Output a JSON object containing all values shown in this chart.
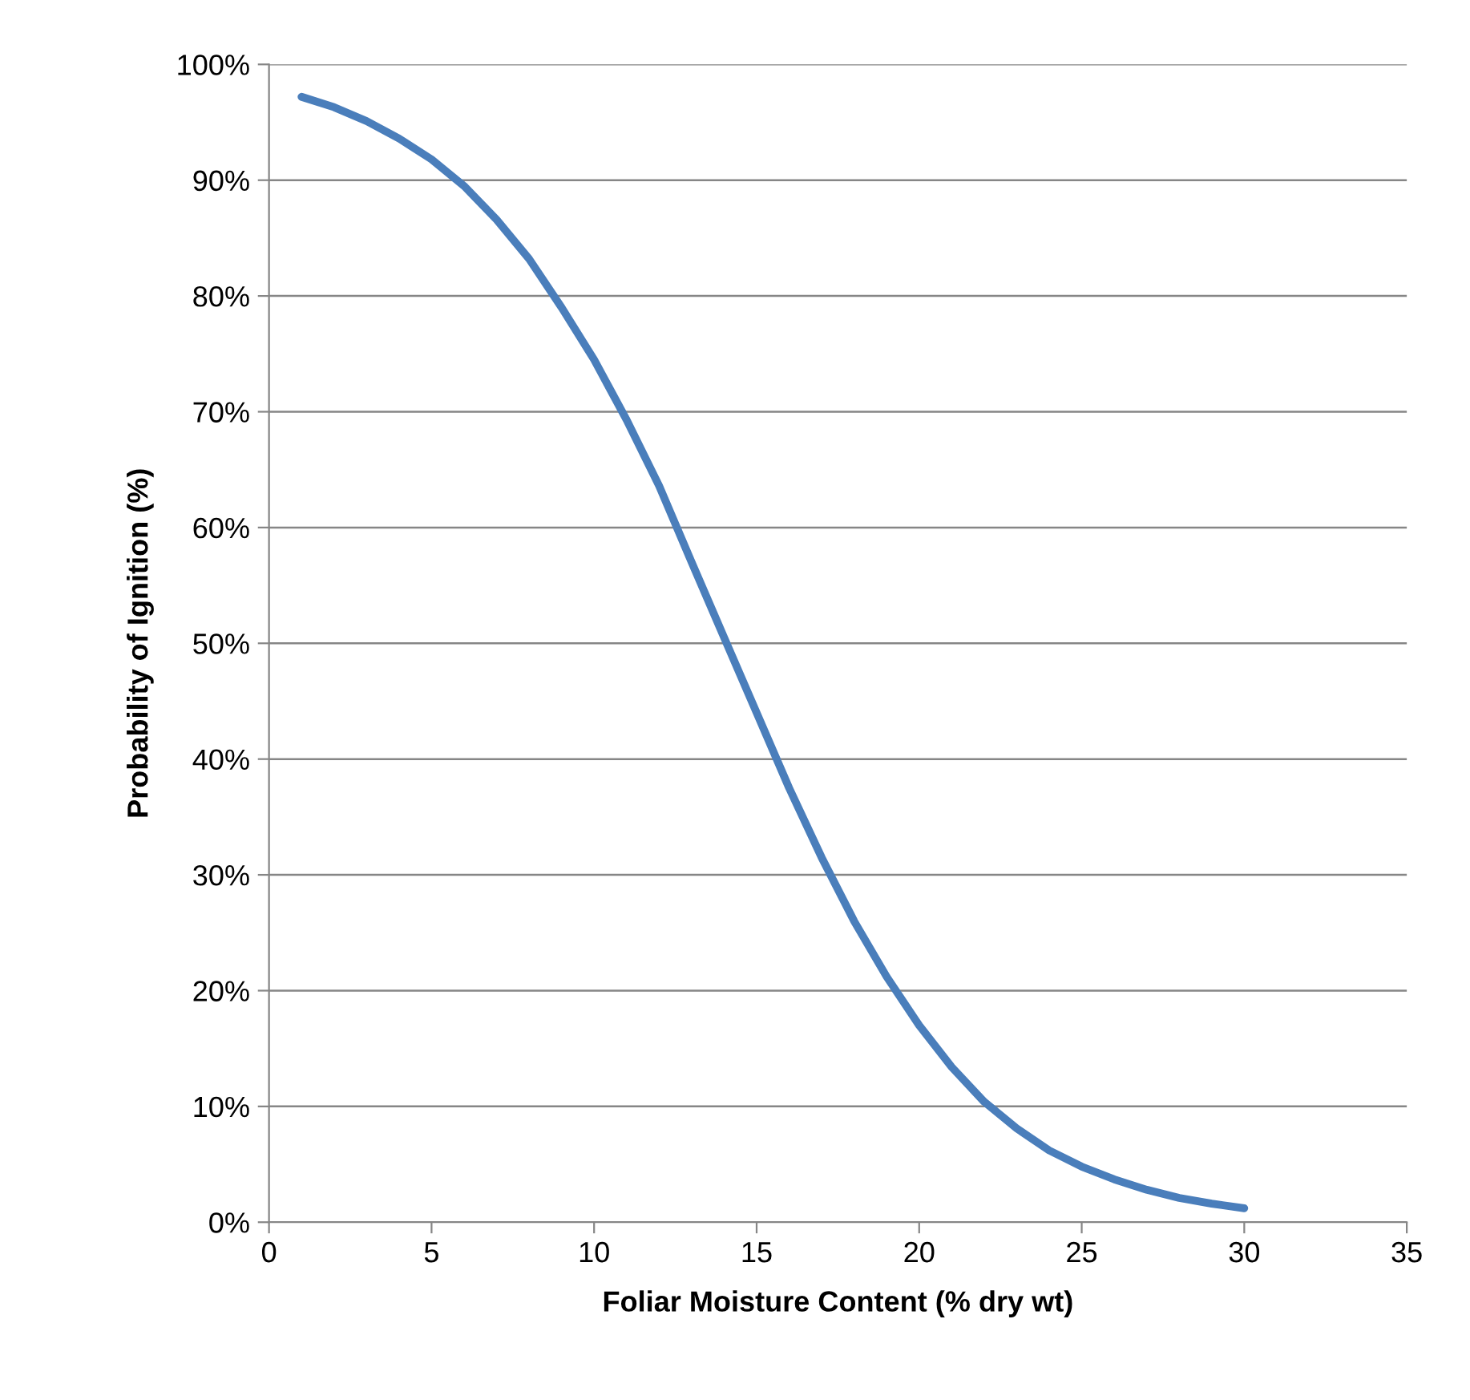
{
  "chart_data": {
    "type": "line",
    "xlabel": "Foliar Moisture Content (% dry wt)",
    "ylabel": "Probability of Ignition (%)",
    "x": [
      1,
      2,
      3,
      4,
      5,
      6,
      7,
      8,
      9,
      10,
      11,
      12,
      13,
      14,
      15,
      16,
      17,
      18,
      19,
      20,
      21,
      22,
      23,
      24,
      25,
      26,
      27,
      28,
      29,
      30
    ],
    "series": [
      {
        "color": "#4a7ebb",
        "values": [
          97.2,
          96.3,
          95.1,
          93.6,
          91.8,
          89.5,
          86.6,
          83.2,
          79.0,
          74.5,
          69.3,
          63.6,
          57.0,
          50.5,
          44.0,
          37.5,
          31.5,
          26.0,
          21.2,
          17.0,
          13.4,
          10.4,
          8.1,
          6.2,
          4.8,
          3.7,
          2.8,
          2.1,
          1.6,
          1.2
        ]
      }
    ],
    "xlim": [
      0,
      35
    ],
    "xticks": [
      0,
      5,
      10,
      15,
      20,
      25,
      30,
      35
    ],
    "ylim": [
      0,
      100
    ],
    "yticks": [
      {
        "value": 0,
        "label": "0%"
      },
      {
        "value": 10,
        "label": "10%"
      },
      {
        "value": 20,
        "label": "20%"
      },
      {
        "value": 30,
        "label": "30%"
      },
      {
        "value": 40,
        "label": "40%"
      },
      {
        "value": 50,
        "label": "50%"
      },
      {
        "value": 60,
        "label": "60%"
      },
      {
        "value": 70,
        "label": "70%"
      },
      {
        "value": 80,
        "label": "80%"
      },
      {
        "value": 90,
        "label": "90%"
      },
      {
        "value": 100,
        "label": "100%"
      }
    ],
    "grid": "y",
    "marker": "none",
    "line_style": "solid"
  }
}
